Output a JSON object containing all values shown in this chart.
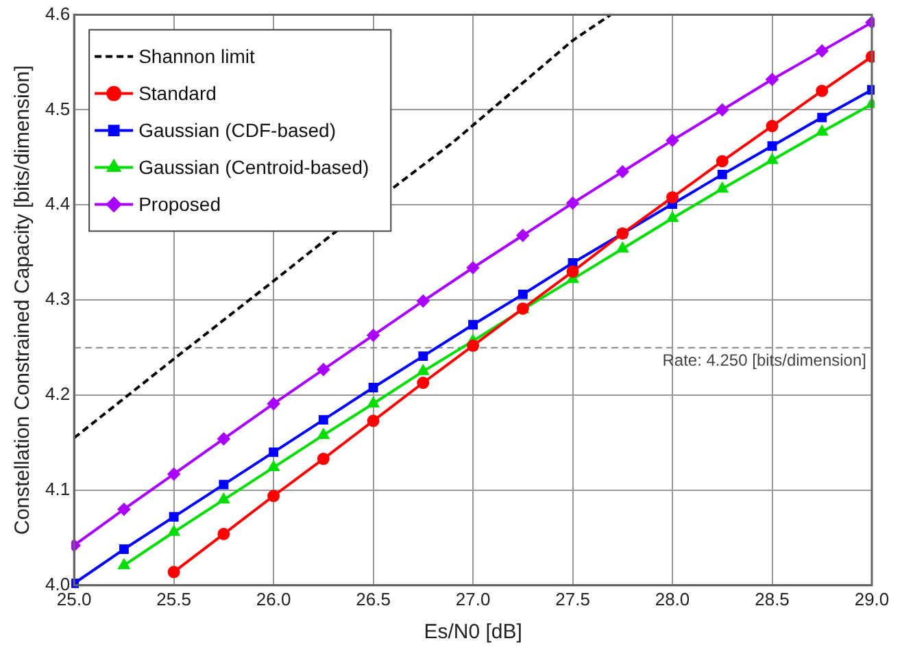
{
  "chart_data": {
    "type": "line",
    "xlabel": "Es/N0 [dB]",
    "ylabel": "Constellation Constrained Capacity [bits/dimension]",
    "x": [
      25,
      25.25,
      25.5,
      25.75,
      26,
      26.25,
      26.5,
      26.75,
      27,
      27.25,
      27.5,
      27.75,
      28,
      28.25,
      28.5,
      28.75,
      29
    ],
    "series": [
      {
        "name": "Shannon limit",
        "color": "#000000",
        "marker": "none",
        "line_style": "dashed",
        "x": [
          25,
          25.5,
          26,
          26.3,
          26.9,
          27.5,
          27.69
        ],
        "values": [
          4.155,
          4.238,
          4.32,
          4.37,
          4.466,
          4.573,
          4.6
        ]
      },
      {
        "name": "Standard",
        "color": "#ff0000",
        "marker": "circle",
        "values": [
          null,
          null,
          4.014,
          4.054,
          4.094,
          4.133,
          4.173,
          4.213,
          4.252,
          4.291,
          4.33,
          4.37,
          4.408,
          4.446,
          4.483,
          4.52,
          4.556
        ]
      },
      {
        "name": "Gaussian (CDF-based)",
        "color": "#0000ff",
        "marker": "square",
        "values": [
          4.002,
          4.038,
          4.072,
          4.106,
          4.14,
          4.174,
          4.208,
          4.241,
          4.274,
          4.306,
          4.339,
          4.37,
          4.401,
          4.432,
          4.462,
          4.492,
          4.521
        ]
      },
      {
        "name": "Gaussian (Centroid-based)",
        "color": "#00dd00",
        "marker": "triangle",
        "values": [
          null,
          4.021,
          4.056,
          4.09,
          4.124,
          4.158,
          4.191,
          4.225,
          4.257,
          4.29,
          4.322,
          4.354,
          4.386,
          4.417,
          4.447,
          4.477,
          4.506
        ]
      },
      {
        "name": "Proposed",
        "color": "#aa00ff",
        "marker": "diamond",
        "values": [
          4.042,
          4.08,
          4.117,
          4.154,
          4.191,
          4.227,
          4.263,
          4.299,
          4.334,
          4.368,
          4.402,
          4.435,
          4.468,
          4.5,
          4.532,
          4.562,
          4.592
        ]
      }
    ],
    "xlim": [
      25,
      29
    ],
    "xticks": [
      {
        "value": 25,
        "label": "25.0"
      },
      {
        "value": 25.5,
        "label": "25.5"
      },
      {
        "value": 26,
        "label": "26.0"
      },
      {
        "value": 26.5,
        "label": "26.5"
      },
      {
        "value": 27,
        "label": "27.0"
      },
      {
        "value": 27.5,
        "label": "27.5"
      },
      {
        "value": 28,
        "label": "28.0"
      },
      {
        "value": 28.5,
        "label": "28.5"
      },
      {
        "value": 29,
        "label": "29.0"
      }
    ],
    "ylim": [
      4.0,
      4.6
    ],
    "yticks": [
      {
        "value": 4.0,
        "label": "4.0"
      },
      4.1,
      4.2,
      4.3,
      4.4,
      4.5,
      4.6
    ],
    "ref_lines": [
      {
        "axis": "y",
        "value": 4.25,
        "label": "Rate: 4.250 [bits/dimension]",
        "color": "#888888",
        "line_style": "dashed"
      }
    ],
    "grid": true,
    "legend": "top left"
  }
}
